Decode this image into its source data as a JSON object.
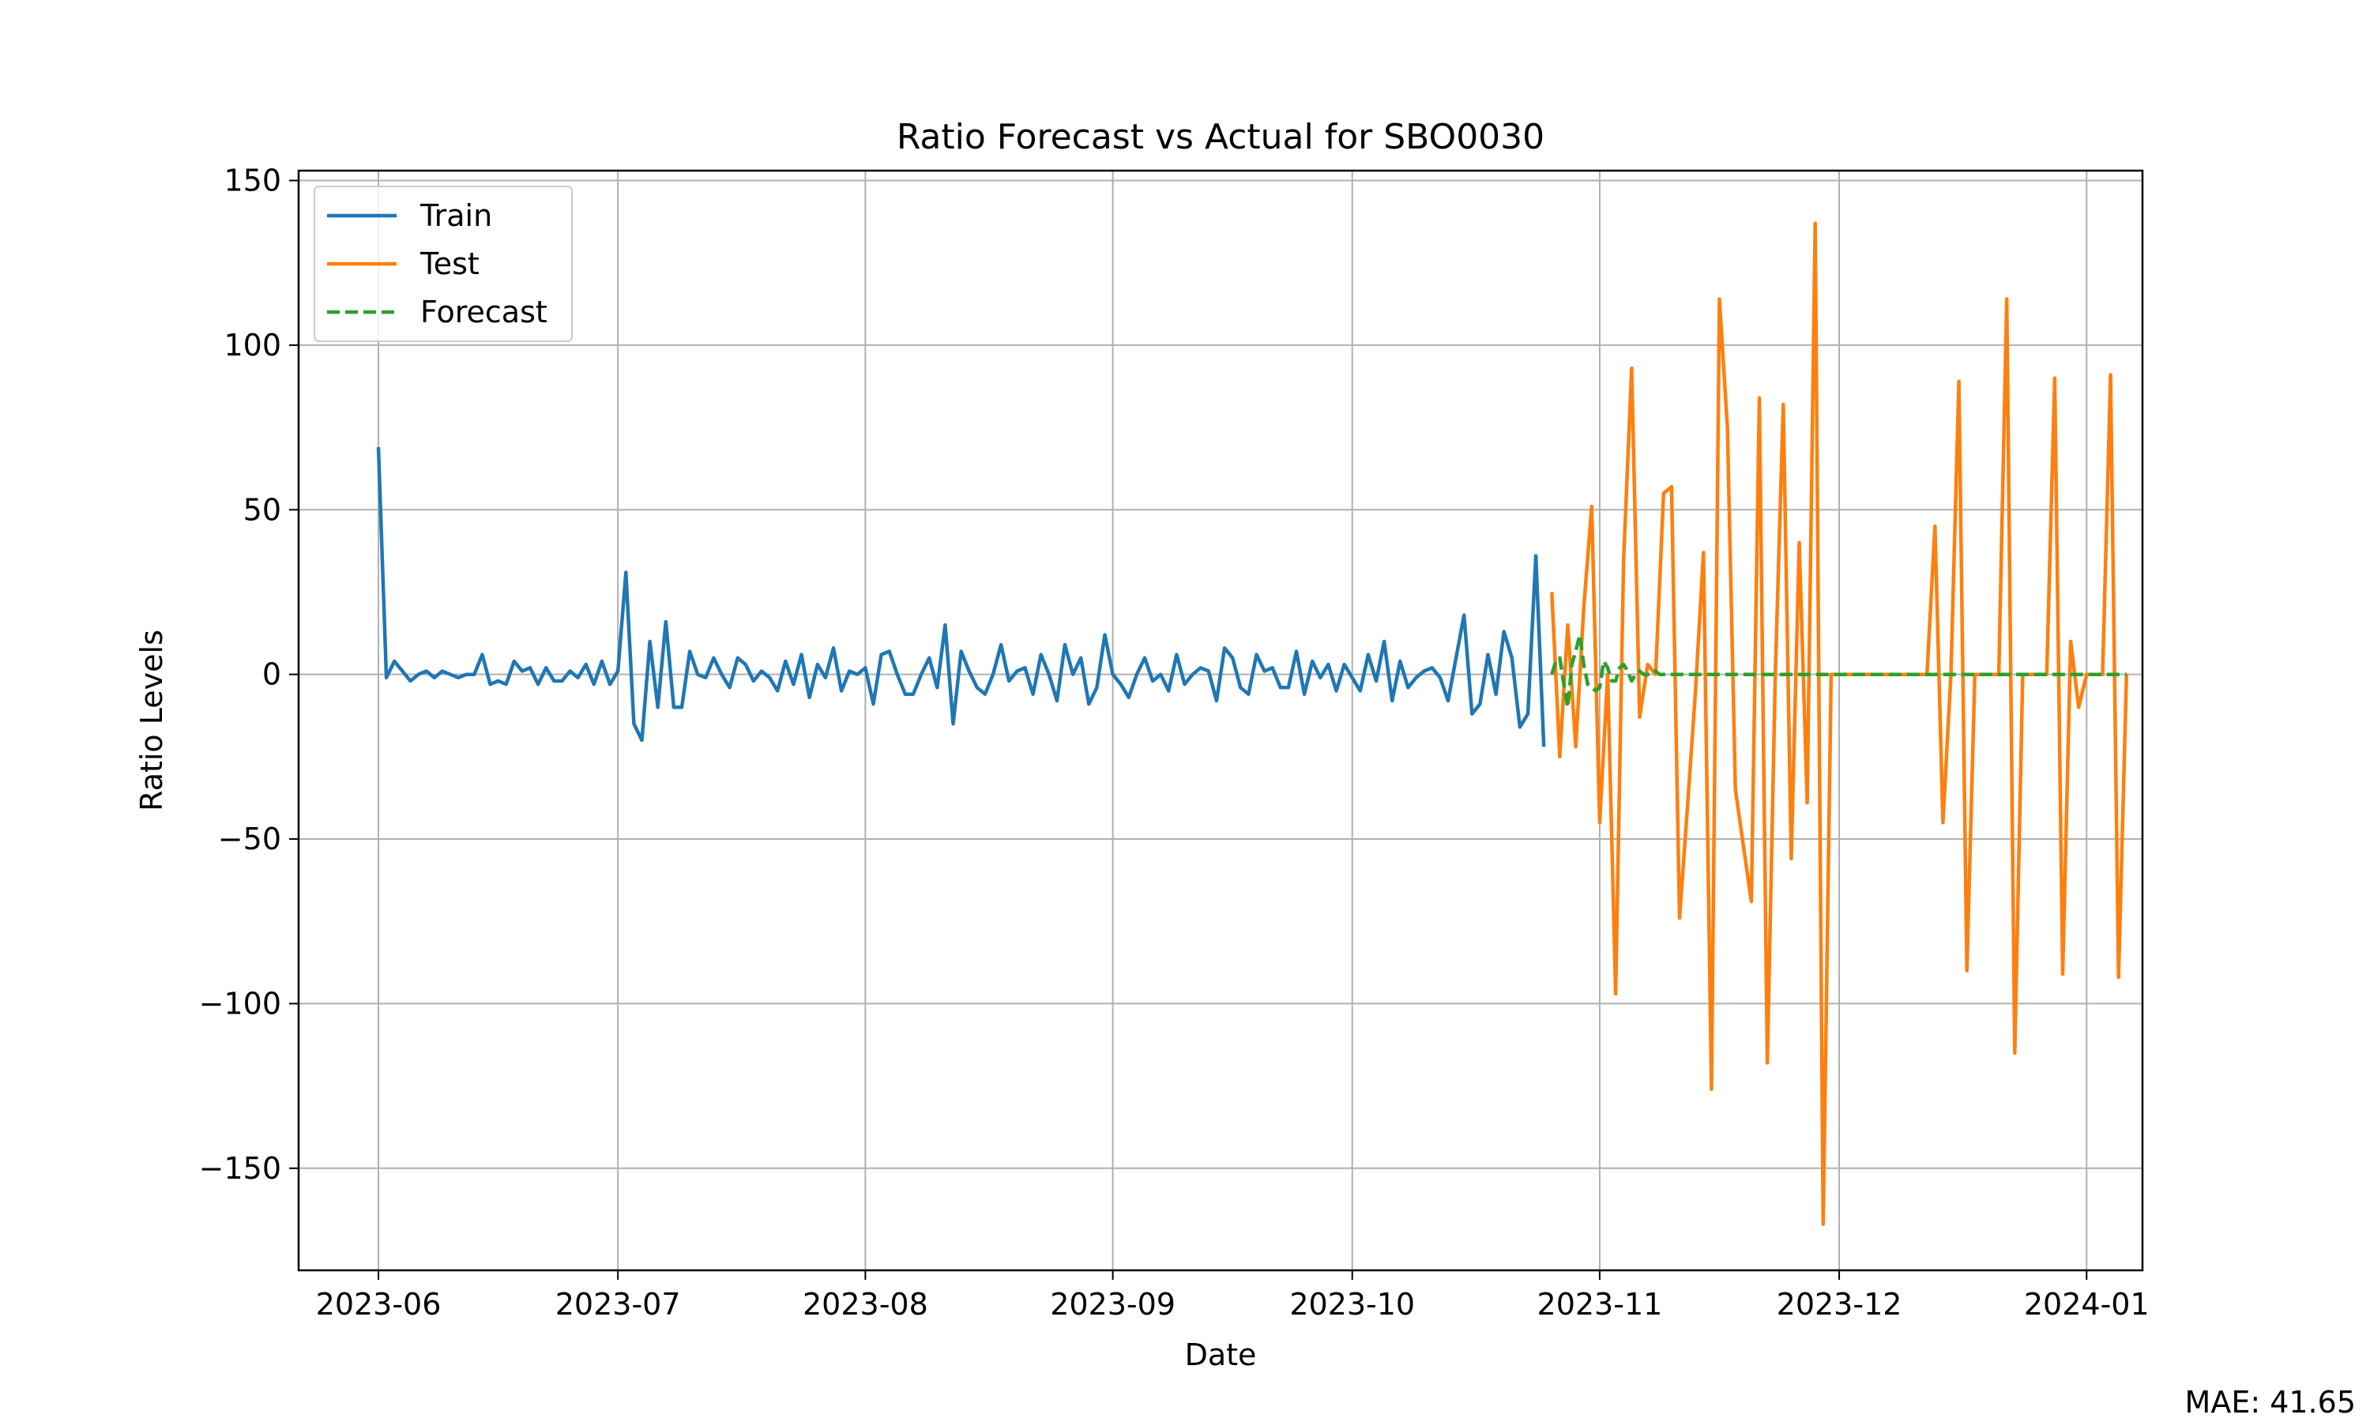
{
  "chart_data": {
    "type": "line",
    "title": "Ratio Forecast vs Actual for SBO0030",
    "xlabel": "Date",
    "ylabel": "Ratio Levels",
    "xlim": [
      "2023-05-22",
      "2024-01-08"
    ],
    "ylim": [
      -181,
      153
    ],
    "grid": true,
    "legend_position": "top-left",
    "x_ticks": [
      "2023-06-01",
      "2023-07-01",
      "2023-08-01",
      "2023-09-01",
      "2023-10-01",
      "2023-11-01",
      "2023-12-01",
      "2024-01-01"
    ],
    "x_tick_labels": [
      "2023-06",
      "2023-07",
      "2023-08",
      "2023-09",
      "2023-10",
      "2023-11",
      "2023-12",
      "2024-01"
    ],
    "y_ticks": [
      150,
      100,
      50,
      0,
      -50,
      -100,
      -150
    ],
    "y_tick_labels": [
      "150",
      "100",
      "50",
      "0",
      "−50",
      "−100",
      "−150"
    ],
    "series": [
      {
        "name": "Train",
        "color": "#1f77b4",
        "dash": "solid",
        "x_start": "2023-06-01",
        "step_days": 1,
        "values": [
          69,
          -1,
          4,
          1,
          -2,
          0,
          1,
          -1,
          1,
          0,
          -1,
          0,
          0,
          6,
          -3,
          -2,
          -3,
          4,
          1,
          2,
          -3,
          2,
          -2,
          -2,
          1,
          -1,
          3,
          -3,
          4,
          -3,
          1,
          31,
          -15,
          -20,
          10,
          -10,
          16,
          -10,
          -10,
          7,
          0,
          -1,
          5,
          0,
          -4,
          5,
          3,
          -2,
          1,
          -1,
          -5,
          4,
          -3,
          6,
          -7,
          3,
          -1,
          8,
          -5,
          1,
          0,
          2,
          -9,
          6,
          7,
          0,
          -6,
          -6,
          0,
          5,
          -4,
          15,
          -15,
          7,
          1,
          -4,
          -6,
          0,
          9,
          -2,
          1,
          2,
          -6,
          6,
          0,
          -8,
          9,
          0,
          5,
          -9,
          -4,
          12,
          0,
          -3,
          -7,
          0,
          5,
          -2,
          0,
          -5,
          6,
          -3,
          0,
          2,
          1,
          -8,
          8,
          5,
          -4,
          -6,
          6,
          1,
          2,
          -4,
          -4,
          7,
          -6,
          4,
          -1,
          3,
          -5,
          3,
          -1,
          -5,
          6,
          -2,
          10,
          -8,
          4,
          -4,
          -1,
          1,
          2,
          -1,
          -8,
          5,
          18,
          -12,
          -9,
          6,
          -6,
          13,
          5,
          -16,
          -12,
          36,
          -22
        ]
      },
      {
        "name": "Test",
        "color": "#ff7f0e",
        "dash": "solid",
        "x_start": "2023-10-26",
        "step_days": 1,
        "values": [
          25,
          -25,
          15,
          -22,
          20,
          51,
          -45,
          0,
          -97,
          35,
          93,
          -13,
          3,
          0,
          55,
          57,
          -74,
          -40,
          -5,
          37,
          -126,
          114,
          75,
          -35,
          -52,
          -69,
          84,
          -118,
          0,
          82,
          -56,
          40,
          -39,
          137,
          -167,
          0,
          0,
          0,
          0,
          0,
          0,
          0,
          0,
          0,
          0,
          0,
          0,
          0,
          45,
          -45,
          0,
          89,
          -90,
          0,
          0,
          0,
          0,
          114,
          -115,
          0,
          0,
          0,
          0,
          90,
          -91,
          10,
          -10,
          0,
          0,
          0,
          91,
          -92,
          0
        ]
      },
      {
        "name": "Forecast",
        "color": "#2ca02c",
        "dash": "dashed",
        "x_start": "2023-10-26",
        "step_days": 0.5,
        "values": [
          0,
          4,
          5,
          -3,
          -10,
          3,
          7,
          12,
          3,
          -3,
          -4,
          -5,
          -4,
          4,
          2,
          -2,
          -2,
          2,
          3,
          1,
          -2,
          0,
          1,
          0,
          0,
          0,
          1,
          0,
          0,
          0,
          0,
          0,
          0,
          0,
          0,
          0,
          0,
          0,
          0,
          0,
          0,
          0,
          0,
          0,
          0,
          0,
          0,
          0,
          0,
          0,
          0,
          0,
          0,
          0,
          0,
          0,
          0,
          0,
          0,
          0,
          0,
          0,
          0,
          0,
          0,
          0,
          0,
          0,
          0,
          0,
          0,
          0,
          0,
          0,
          0,
          0,
          0,
          0,
          0,
          0,
          0,
          0,
          0,
          0,
          0,
          0,
          0,
          0,
          0,
          0,
          0,
          0,
          0,
          0,
          0,
          0,
          0,
          0,
          0,
          0,
          0,
          0,
          0,
          0,
          0,
          0,
          0,
          0,
          0,
          0,
          0,
          0,
          0,
          0,
          0,
          0,
          0,
          0,
          0,
          0,
          0,
          0,
          0,
          0,
          0,
          0,
          0,
          0,
          0,
          0,
          0,
          0,
          0,
          0,
          0,
          0,
          0,
          0,
          0,
          0,
          0,
          0,
          0,
          0,
          0
        ]
      }
    ]
  },
  "annotation": {
    "mae_text": "MAE: 41.65"
  }
}
